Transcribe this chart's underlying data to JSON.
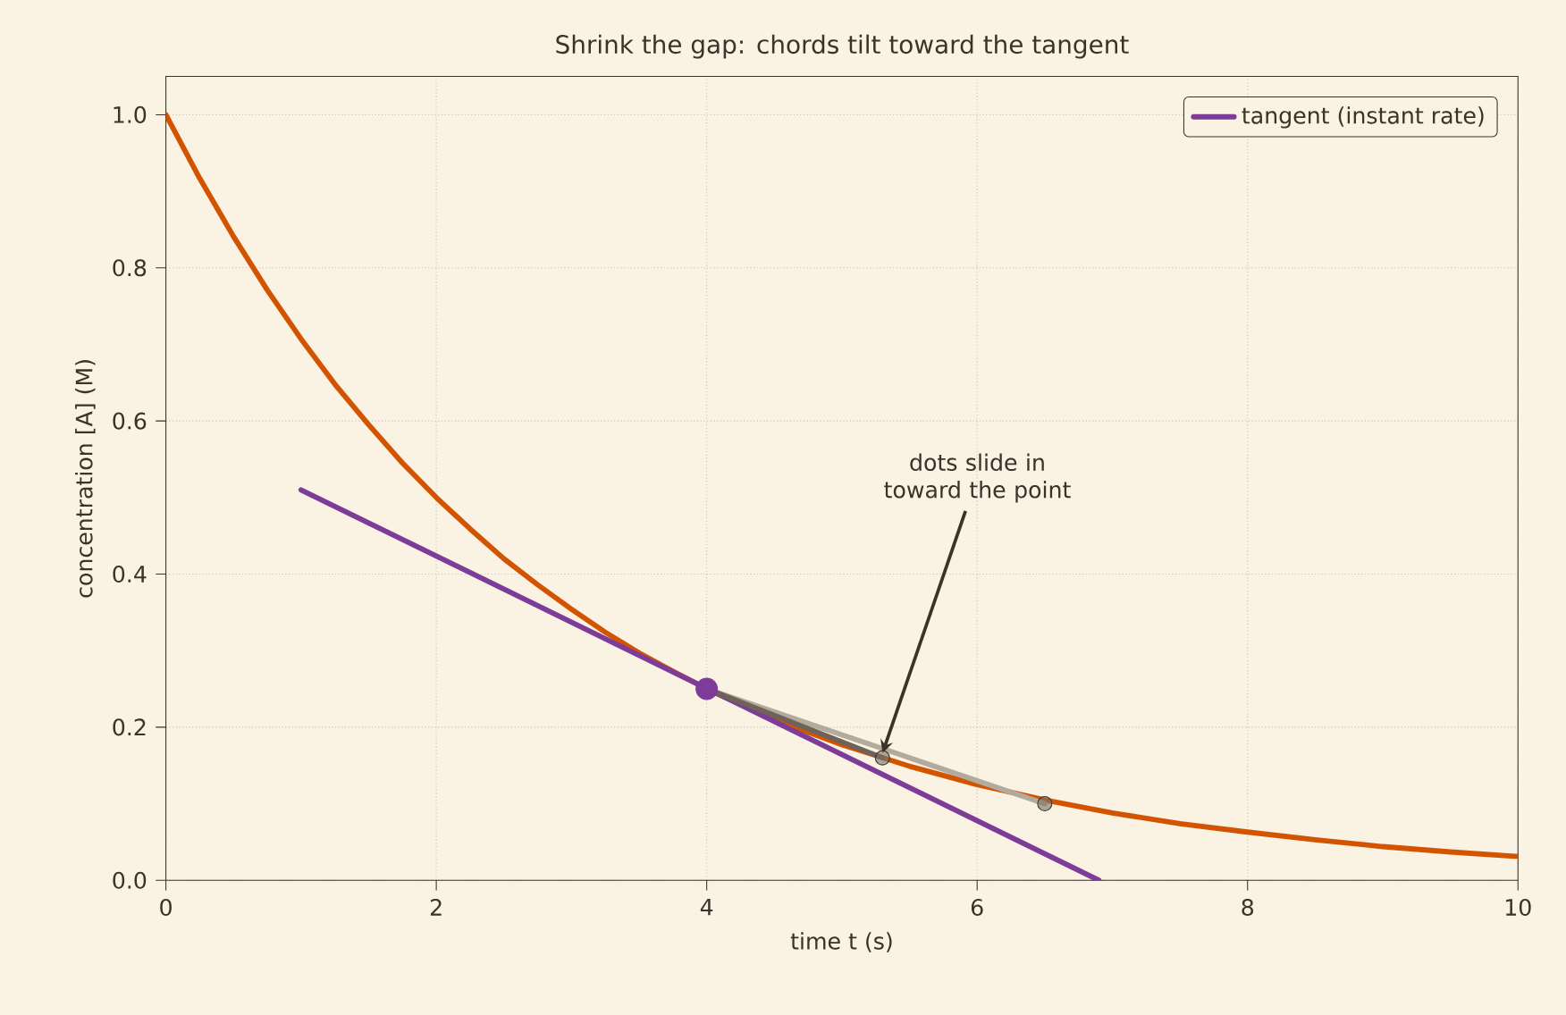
{
  "chart_data": {
    "type": "line",
    "title": "Shrink the gap: chords tilt toward the tangent",
    "xlabel": "time  t  (s)",
    "ylabel": "concentration  [A]  (M)",
    "xlim": [
      0,
      10
    ],
    "ylim": [
      0,
      1.05
    ],
    "xticks": [
      0,
      2,
      4,
      6,
      8,
      10
    ],
    "yticks": [
      {
        "value": 0,
        "label": "0.0"
      },
      0.2,
      0.4,
      0.6,
      0.8,
      {
        "value": 1,
        "label": "1.0"
      }
    ],
    "grid": true,
    "legend": "top right",
    "series": [
      {
        "color": "#d35400",
        "marker": "none",
        "x": [
          0,
          0.25,
          0.5,
          0.75,
          1,
          1.25,
          1.5,
          1.75,
          2,
          2.25,
          2.5,
          2.75,
          3,
          3.25,
          3.5,
          3.75,
          4,
          4.5,
          5,
          5.5,
          6,
          6.5,
          7,
          7.5,
          8,
          8.5,
          9,
          9.5,
          10
        ],
        "values": [
          1.0,
          0.917,
          0.841,
          0.771,
          0.707,
          0.648,
          0.595,
          0.545,
          0.5,
          0.459,
          0.42,
          0.386,
          0.354,
          0.324,
          0.297,
          0.273,
          0.25,
          0.21,
          0.177,
          0.149,
          0.125,
          0.105,
          0.088,
          0.074,
          0.063,
          0.053,
          0.044,
          0.037,
          0.031
        ]
      },
      {
        "type": "line",
        "name": "tangent (instant rate)",
        "color": "#7d3c98",
        "marker": "none",
        "x": [
          1,
          6.9
        ],
        "values": [
          0.51,
          0
        ]
      },
      {
        "type": "line",
        "color": "#b3aa9e",
        "marker": "none",
        "x": [
          4,
          6.5
        ],
        "values": [
          0.25,
          0.1
        ]
      },
      {
        "type": "line",
        "color": "#6e6259",
        "marker": "none",
        "x": [
          4,
          5.3
        ],
        "values": [
          0.25,
          0.16
        ]
      },
      {
        "type": "scatter",
        "color": "#7a6f66",
        "marker": "circle",
        "x": [
          5.3,
          6.5
        ],
        "values": [
          0.16,
          0.1
        ]
      },
      {
        "type": "scatter",
        "color": "#7d3c98",
        "marker": "circle",
        "x": [
          4
        ],
        "values": [
          0.25
        ]
      }
    ],
    "annotations": [
      {
        "text": "dots slide in toward the point",
        "x": 5.3,
        "y": 0.16
      }
    ]
  }
}
